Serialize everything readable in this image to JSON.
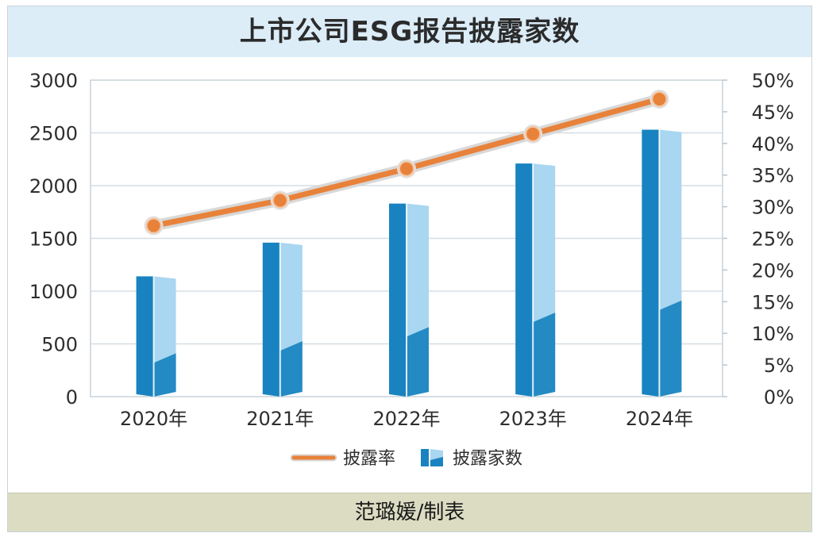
{
  "title": "上市公司ESG报告披露家数",
  "credit": "范璐媛/制表",
  "chart_data": {
    "type": "bar",
    "categories": [
      "2020年",
      "2021年",
      "2022年",
      "2023年",
      "2024年"
    ],
    "series": [
      {
        "name": "披露家数",
        "type": "bar",
        "axis": "left",
        "values": [
          1140,
          1460,
          1830,
          2210,
          2530
        ]
      },
      {
        "name": "披露率",
        "type": "line",
        "axis": "right",
        "values": [
          0.27,
          0.31,
          0.36,
          0.415,
          0.47
        ]
      }
    ],
    "y_left": {
      "min": 0,
      "max": 3000,
      "ticks": [
        0,
        500,
        1000,
        1500,
        2000,
        2500,
        3000
      ]
    },
    "y_right": {
      "min": 0,
      "max": 0.5,
      "ticks": [
        "0%",
        "5%",
        "10%",
        "15%",
        "20%",
        "25%",
        "30%",
        "35%",
        "40%",
        "45%",
        "50%"
      ]
    },
    "grid": true,
    "legend": {
      "position": "bottom-center",
      "items": [
        "披露率",
        "披露家数"
      ]
    },
    "colors": {
      "bar_dark": "#1883c0",
      "bar_light": "#a9d6f0",
      "line": "#e8823a",
      "line_halo": "#d8d8d8"
    }
  }
}
